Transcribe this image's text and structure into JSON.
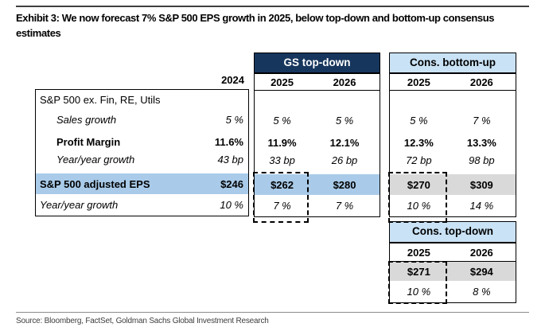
{
  "exhibit": {
    "title": "Exhibit 3: We now forecast 7% S&P 500 EPS growth in 2025, below top-down and bottom-up consensus estimates",
    "source": "Source: Bloomberg, FactSet, Goldman Sachs Global Investment Research"
  },
  "colors": {
    "navy_header_bg": "#17365D",
    "light_blue_header_bg": "#C9E2F5",
    "highlight_blue_row": "#A9CBE9",
    "highlight_gray_row": "#D9D9D9",
    "border": "#000000"
  },
  "table": {
    "base_year_header": "2024",
    "groups": {
      "gs_top_down": {
        "label": "GS top-down",
        "years": [
          "2025",
          "2026"
        ]
      },
      "cons_bottom_up": {
        "label": "Cons. bottom-up",
        "years": [
          "2025",
          "2026"
        ]
      },
      "cons_top_down": {
        "label": "Cons. top-down",
        "years": [
          "2025",
          "2026"
        ]
      }
    },
    "section_label": "S&P 500 ex. Fin, RE, Utils",
    "rows": {
      "sales_growth": {
        "label": "Sales growth",
        "y2024": "5 %",
        "gs": [
          "5 %",
          "5 %"
        ],
        "cons_bu": [
          "5 %",
          "7 %"
        ]
      },
      "profit_margin": {
        "label": "Profit Margin",
        "y2024": "11.6%",
        "gs": [
          "11.9%",
          "12.1%"
        ],
        "cons_bu": [
          "12.3%",
          "13.3%"
        ]
      },
      "margin_growth": {
        "label": "Year/year growth",
        "y2024": "43 bp",
        "gs": [
          "33 bp",
          "26 bp"
        ],
        "cons_bu": [
          "72 bp",
          "98 bp"
        ]
      },
      "adjusted_eps": {
        "label": "S&P 500 adjusted EPS",
        "y2024": "$246",
        "gs": [
          "$262",
          "$280"
        ],
        "cons_bu": [
          "$270",
          "$309"
        ]
      },
      "eps_growth": {
        "label": "Year/year growth",
        "y2024": "10 %",
        "gs": [
          "7 %",
          "7 %"
        ],
        "cons_bu": [
          "10 %",
          "14 %"
        ]
      }
    },
    "cons_top_down_values": {
      "eps": [
        "$271",
        "$294"
      ],
      "growth": [
        "10 %",
        "8 %"
      ]
    }
  }
}
